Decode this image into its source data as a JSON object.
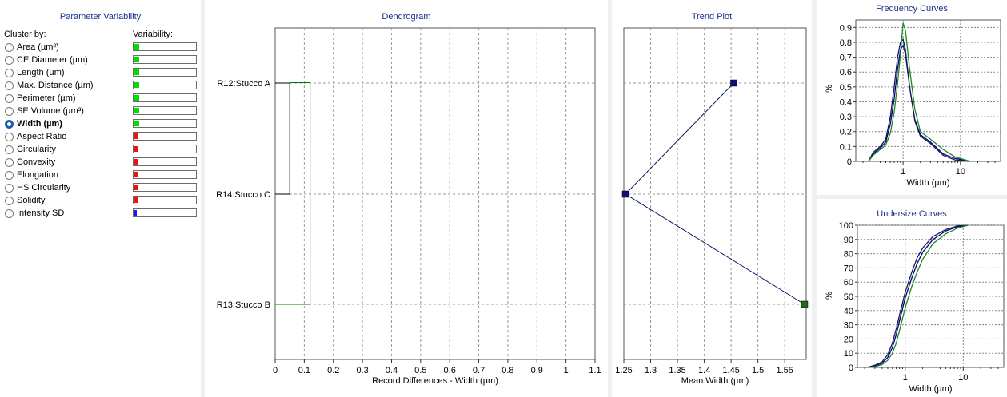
{
  "param_panel": {
    "title": "Parameter Variability",
    "cluster_by_label": "Cluster by:",
    "variability_label": "Variability:",
    "items": [
      {
        "label": "Area (µm²)",
        "variability": 0.08,
        "color": "#00dd00",
        "selected": false
      },
      {
        "label": "CE Diameter (µm)",
        "variability": 0.08,
        "color": "#00dd00",
        "selected": false
      },
      {
        "label": "Length (µm)",
        "variability": 0.08,
        "color": "#00dd00",
        "selected": false
      },
      {
        "label": "Max. Distance (µm)",
        "variability": 0.08,
        "color": "#00dd00",
        "selected": false
      },
      {
        "label": "Perimeter (µm)",
        "variability": 0.08,
        "color": "#00dd00",
        "selected": false
      },
      {
        "label": "SE Volume (µm³)",
        "variability": 0.08,
        "color": "#00dd00",
        "selected": false
      },
      {
        "label": "Width (µm)",
        "variability": 0.08,
        "color": "#00dd00",
        "selected": true
      },
      {
        "label": "Aspect Ratio",
        "variability": 0.06,
        "color": "#ee1111",
        "selected": false
      },
      {
        "label": "Circularity",
        "variability": 0.06,
        "color": "#ee1111",
        "selected": false
      },
      {
        "label": "Convexity",
        "variability": 0.06,
        "color": "#ee1111",
        "selected": false
      },
      {
        "label": "Elongation",
        "variability": 0.06,
        "color": "#ee1111",
        "selected": false
      },
      {
        "label": "HS Circularity",
        "variability": 0.06,
        "color": "#ee1111",
        "selected": false
      },
      {
        "label": "Solidity",
        "variability": 0.06,
        "color": "#ee1111",
        "selected": false
      },
      {
        "label": "Intensity SD",
        "variability": 0.04,
        "color": "#1a1aee",
        "selected": false
      }
    ]
  },
  "dendrogram": {
    "title": "Dendrogram",
    "xlabel": "Record Differences - Width (µm)",
    "xticks": [
      "0",
      "0.1",
      "0.2",
      "0.3",
      "0.4",
      "0.5",
      "0.6",
      "0.7",
      "0.8",
      "0.9",
      "1",
      "1.1"
    ],
    "xlim": [
      0,
      1.1
    ],
    "leaves": [
      "R12:Stucco A",
      "R14:Stucco C",
      "R13:Stucco B"
    ],
    "merges": [
      {
        "items": [
          "R12:Stucco A",
          "R14:Stucco C"
        ],
        "distance": 0.05,
        "color": "#000000"
      },
      {
        "items": [
          "cluster1",
          "R13:Stucco B"
        ],
        "distance": 0.12,
        "color": "#008000"
      }
    ]
  },
  "chart_data": [
    {
      "type": "line",
      "title": "Trend Plot",
      "xlabel": "Mean Width (µm)",
      "xticks": [
        "1.25",
        "1.3",
        "1.35",
        "1.4",
        "1.45",
        "1.5",
        "1.55"
      ],
      "xlim": [
        1.25,
        1.59
      ],
      "categories": [
        "R12:Stucco A",
        "R14:Stucco C",
        "R13:Stucco B"
      ],
      "values": [
        1.455,
        1.253,
        1.587
      ],
      "point_colors": [
        "#101070",
        "#101070",
        "#1e6b1e"
      ]
    },
    {
      "type": "line",
      "title": "Frequency Curves",
      "xlabel": "Width (µm)",
      "ylabel": "%",
      "xscale": "log",
      "xticks": [
        "1",
        "10"
      ],
      "yticks": [
        "0",
        "0.1",
        "0.2",
        "0.3",
        "0.4",
        "0.5",
        "0.6",
        "0.7",
        "0.8",
        "0.9"
      ],
      "xlim": [
        0.15,
        50
      ],
      "ylim": [
        0,
        0.95
      ],
      "series": [
        {
          "color": "#000080",
          "points": [
            [
              0.25,
              0
            ],
            [
              0.3,
              0.05
            ],
            [
              0.4,
              0.09
            ],
            [
              0.5,
              0.13
            ],
            [
              0.6,
              0.25
            ],
            [
              0.7,
              0.42
            ],
            [
              0.8,
              0.62
            ],
            [
              0.9,
              0.75
            ],
            [
              1.0,
              0.78
            ],
            [
              1.1,
              0.72
            ],
            [
              1.3,
              0.5
            ],
            [
              1.6,
              0.28
            ],
            [
              2,
              0.18
            ],
            [
              3,
              0.13
            ],
            [
              5,
              0.05
            ],
            [
              8,
              0.02
            ],
            [
              15,
              0
            ]
          ]
        },
        {
          "color": "#1a1a5a",
          "points": [
            [
              0.25,
              0
            ],
            [
              0.3,
              0.06
            ],
            [
              0.4,
              0.1
            ],
            [
              0.5,
              0.15
            ],
            [
              0.6,
              0.3
            ],
            [
              0.7,
              0.5
            ],
            [
              0.8,
              0.7
            ],
            [
              0.9,
              0.8
            ],
            [
              1.0,
              0.82
            ],
            [
              1.1,
              0.75
            ],
            [
              1.3,
              0.5
            ],
            [
              1.6,
              0.27
            ],
            [
              2,
              0.17
            ],
            [
              3,
              0.12
            ],
            [
              5,
              0.04
            ],
            [
              8,
              0.01
            ],
            [
              15,
              0
            ]
          ]
        },
        {
          "color": "#1e8a1e",
          "points": [
            [
              0.25,
              0
            ],
            [
              0.3,
              0.04
            ],
            [
              0.4,
              0.08
            ],
            [
              0.5,
              0.11
            ],
            [
              0.6,
              0.19
            ],
            [
              0.7,
              0.33
            ],
            [
              0.8,
              0.52
            ],
            [
              0.9,
              0.72
            ],
            [
              1.0,
              0.93
            ],
            [
              1.1,
              0.88
            ],
            [
              1.3,
              0.62
            ],
            [
              1.6,
              0.35
            ],
            [
              2,
              0.2
            ],
            [
              3,
              0.15
            ],
            [
              5,
              0.08
            ],
            [
              8,
              0.03
            ],
            [
              15,
              0
            ]
          ]
        }
      ]
    },
    {
      "type": "line",
      "title": "Undersize Curves",
      "xlabel": "Width (µm)",
      "ylabel": "%",
      "xscale": "log",
      "xticks": [
        "1",
        "10"
      ],
      "yticks": [
        "0",
        "10",
        "20",
        "30",
        "40",
        "50",
        "60",
        "70",
        "80",
        "90",
        "100"
      ],
      "xlim": [
        0.15,
        50
      ],
      "ylim": [
        0,
        100
      ],
      "series": [
        {
          "color": "#000080",
          "points": [
            [
              0.22,
              0
            ],
            [
              0.3,
              1
            ],
            [
              0.4,
              3
            ],
            [
              0.5,
              7
            ],
            [
              0.6,
              14
            ],
            [
              0.7,
              23
            ],
            [
              0.8,
              33
            ],
            [
              1.0,
              49
            ],
            [
              1.3,
              63
            ],
            [
              1.6,
              73
            ],
            [
              2,
              81
            ],
            [
              3,
              90
            ],
            [
              5,
              96
            ],
            [
              8,
              99
            ],
            [
              12,
              100
            ]
          ]
        },
        {
          "color": "#1a1a5a",
          "points": [
            [
              0.22,
              0
            ],
            [
              0.3,
              1.5
            ],
            [
              0.4,
              4
            ],
            [
              0.5,
              9
            ],
            [
              0.6,
              17
            ],
            [
              0.7,
              27
            ],
            [
              0.8,
              37
            ],
            [
              1.0,
              53
            ],
            [
              1.3,
              67
            ],
            [
              1.6,
              77
            ],
            [
              2,
              84
            ],
            [
              3,
              92
            ],
            [
              5,
              97
            ],
            [
              8,
              99.5
            ],
            [
              12,
              100
            ]
          ]
        },
        {
          "color": "#1e8a1e",
          "points": [
            [
              0.22,
              0
            ],
            [
              0.3,
              0.5
            ],
            [
              0.4,
              2
            ],
            [
              0.5,
              5
            ],
            [
              0.6,
              10
            ],
            [
              0.7,
              17
            ],
            [
              0.8,
              26
            ],
            [
              1.0,
              42
            ],
            [
              1.3,
              57
            ],
            [
              1.6,
              67
            ],
            [
              2,
              76
            ],
            [
              3,
              87
            ],
            [
              5,
              94
            ],
            [
              8,
              98
            ],
            [
              12,
              100
            ]
          ]
        }
      ]
    }
  ]
}
